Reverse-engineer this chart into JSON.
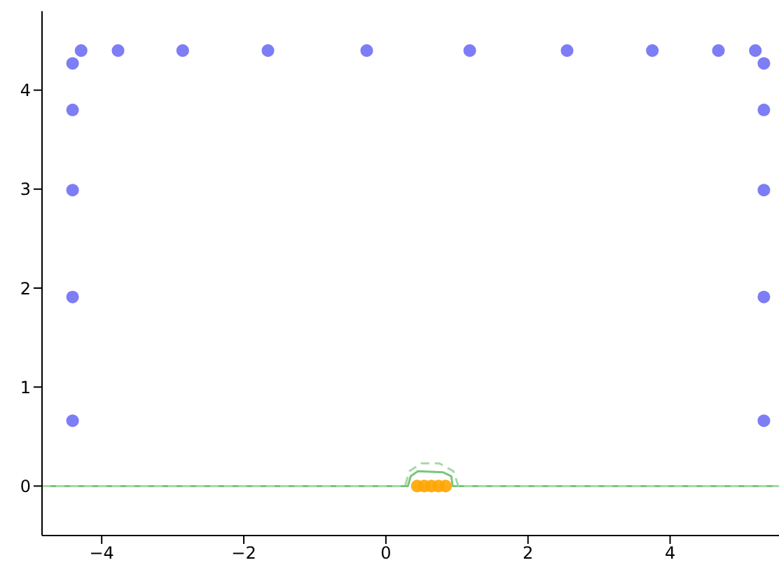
{
  "chart_data": {
    "type": "scatter",
    "xlim": [
      -4.84,
      5.73
    ],
    "ylim": [
      -0.5,
      4.84
    ],
    "xticks": [
      -4,
      -2,
      0,
      2,
      4
    ],
    "yticks": [
      0,
      1,
      2,
      3,
      4
    ],
    "series": [
      {
        "color": "#6f6ff5",
        "marker": "circle",
        "x": [
          -4.41,
          -4.41,
          -4.41,
          -4.41,
          -4.41,
          -4.29,
          -3.77,
          -2.86,
          -1.66,
          -0.27,
          1.18,
          2.55,
          3.75,
          4.68,
          5.2,
          5.32,
          5.32,
          5.32,
          5.32,
          5.32
        ],
        "values": [
          0.66,
          1.91,
          2.99,
          3.8,
          4.27,
          4.4,
          4.4,
          4.4,
          4.4,
          4.4,
          4.4,
          4.4,
          4.4,
          4.4,
          4.4,
          4.27,
          3.8,
          2.99,
          1.91,
          0.66
        ]
      },
      {
        "color": "#ffa500",
        "marker": "circle",
        "x": [
          0.44,
          0.54,
          0.64,
          0.74,
          0.84
        ],
        "values": [
          0,
          0,
          0,
          0,
          0
        ]
      },
      {
        "type": "line",
        "color": "#7cc47c",
        "line_style": "solid",
        "marker": "none",
        "x": [
          -4.84,
          0.31,
          0.35,
          0.45,
          0.8,
          0.92,
          0.94,
          5.73
        ],
        "values": [
          0,
          0,
          0.1,
          0.15,
          0.14,
          0.1,
          0,
          0
        ]
      },
      {
        "type": "line",
        "color": "#a6d8a6",
        "line_style": "dashed",
        "marker": "none",
        "x": [
          -4.84,
          0.27,
          0.33,
          0.5,
          0.75,
          0.95,
          1.02,
          5.73
        ],
        "values": [
          0,
          0,
          0.15,
          0.23,
          0.23,
          0.15,
          0,
          0
        ]
      }
    ]
  }
}
